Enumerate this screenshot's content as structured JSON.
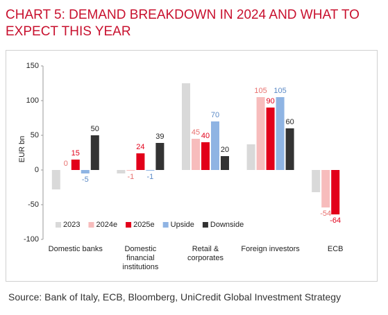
{
  "chart_data": {
    "type": "bar",
    "title": "CHART 5: DEMAND BREAKDOWN IN 2024 AND WHAT TO EXPECT THIS YEAR",
    "y_label": "EUR bn",
    "source": "Source: Bank of Italy, ECB, Bloomberg, UniCredit Global Investment Strategy",
    "categories": [
      "Domestic  banks",
      "Domestic financial institutions",
      "Retail & corporates",
      "Foreign investors",
      "ECB"
    ],
    "series": [
      {
        "name": "2023",
        "color": "#d9d9d9",
        "show_labels": false,
        "values": [
          -28,
          -5,
          125,
          37,
          -32
        ]
      },
      {
        "name": "2024e",
        "color": "#f7bcbc",
        "show_labels": true,
        "label_color": "#e8706e",
        "values": [
          0,
          -1,
          45,
          105,
          -54
        ]
      },
      {
        "name": "2025e",
        "color": "#e2001a",
        "show_labels": true,
        "label_color": "#e2001a",
        "values": [
          15,
          24,
          40,
          90,
          -64
        ]
      },
      {
        "name": "Upside",
        "color": "#8fb4e3",
        "show_labels": true,
        "label_color": "#5b8ac6",
        "values": [
          -5,
          -1,
          70,
          105,
          null
        ]
      },
      {
        "name": "Downside",
        "color": "#333333",
        "show_labels": true,
        "label_color": "#222222",
        "values": [
          50,
          39,
          20,
          60,
          null
        ]
      }
    ],
    "ylim": [
      -100,
      150
    ],
    "yticks": [
      -100,
      -50,
      0,
      50,
      100,
      150
    ],
    "grid": false
  }
}
